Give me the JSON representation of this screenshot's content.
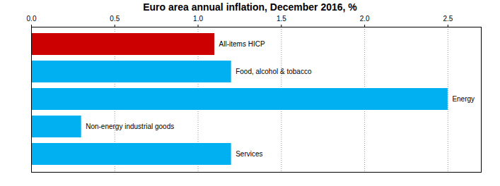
{
  "chart_data": {
    "type": "bar",
    "orientation": "horizontal",
    "title": "Euro area annual inflation, December 2016, %",
    "categories": [
      "All-items HICP",
      "Food, alcohol & tobacco",
      "Energy",
      "Non-energy industrial goods",
      "Services"
    ],
    "values": [
      1.1,
      1.2,
      2.5,
      0.3,
      1.2
    ],
    "colors": [
      "#cc0000",
      "#00b0f0",
      "#00b0f0",
      "#00b0f0",
      "#00b0f0"
    ],
    "xlim": [
      0,
      2.7
    ],
    "xticks": [
      {
        "value": 0,
        "label": "0.0"
      },
      {
        "value": 0.5,
        "label": "0.5"
      },
      {
        "value": 1,
        "label": "1.0"
      },
      {
        "value": 1.5,
        "label": "1.5"
      },
      {
        "value": 2,
        "label": "2.0"
      },
      {
        "value": 2.5,
        "label": "2.5"
      }
    ],
    "grid": true
  }
}
